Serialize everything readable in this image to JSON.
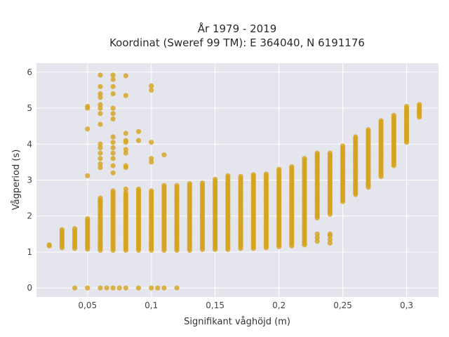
{
  "chart_data": {
    "type": "scatter",
    "title_line1": "År 1979 - 2019",
    "title_line2": "Koordinat (Sweref 99 TM): E 364040, N 6191176",
    "xlabel": "Signifikant våghöjd (m)",
    "ylabel": "Vågperiod (s)",
    "xlim": [
      0.01,
      0.325
    ],
    "ylim": [
      -0.25,
      6.25
    ],
    "xticks": [
      0.05,
      0.1,
      0.15,
      0.2,
      0.25,
      0.3
    ],
    "xtick_labels": [
      "0,05",
      "0,1",
      "0,15",
      "0,2",
      "0,25",
      "0,3"
    ],
    "yticks": [
      0,
      1,
      2,
      3,
      4,
      5,
      6
    ],
    "ytick_labels": [
      "0",
      "1",
      "2",
      "3",
      "4",
      "5",
      "6"
    ],
    "grid": true,
    "marker_color": "#d4a21a",
    "background_color": "#e5e5ee",
    "columns": [
      {
        "x": 0.02,
        "ymin": 1.17,
        "ymax": 1.2,
        "step": 0.03
      },
      {
        "x": 0.03,
        "ymin": 1.12,
        "ymax": 1.65,
        "step": 0.05
      },
      {
        "x": 0.04,
        "ymin": 1.1,
        "ymax": 1.65,
        "step": 0.05
      },
      {
        "x": 0.05,
        "ymin": 1.08,
        "ymax": 1.95,
        "step": 0.05
      },
      {
        "x": 0.06,
        "ymin": 1.05,
        "ymax": 2.5,
        "step": 0.05
      },
      {
        "x": 0.07,
        "ymin": 1.05,
        "ymax": 2.7,
        "step": 0.05
      },
      {
        "x": 0.08,
        "ymin": 1.05,
        "ymax": 2.65,
        "step": 0.05
      },
      {
        "x": 0.09,
        "ymin": 1.05,
        "ymax": 2.75,
        "step": 0.05
      },
      {
        "x": 0.1,
        "ymin": 1.05,
        "ymax": 2.7,
        "step": 0.05
      },
      {
        "x": 0.11,
        "ymin": 1.05,
        "ymax": 2.85,
        "step": 0.05
      },
      {
        "x": 0.12,
        "ymin": 1.05,
        "ymax": 2.85,
        "step": 0.05
      },
      {
        "x": 0.13,
        "ymin": 1.05,
        "ymax": 2.9,
        "step": 0.05
      },
      {
        "x": 0.14,
        "ymin": 1.07,
        "ymax": 2.95,
        "step": 0.05
      },
      {
        "x": 0.15,
        "ymin": 1.07,
        "ymax": 3.05,
        "step": 0.05
      },
      {
        "x": 0.16,
        "ymin": 1.07,
        "ymax": 3.15,
        "step": 0.05
      },
      {
        "x": 0.17,
        "ymin": 1.1,
        "ymax": 3.1,
        "step": 0.05
      },
      {
        "x": 0.18,
        "ymin": 1.1,
        "ymax": 3.15,
        "step": 0.05
      },
      {
        "x": 0.19,
        "ymin": 1.12,
        "ymax": 3.2,
        "step": 0.05
      },
      {
        "x": 0.2,
        "ymin": 1.15,
        "ymax": 3.3,
        "step": 0.05
      },
      {
        "x": 0.21,
        "ymin": 1.17,
        "ymax": 3.4,
        "step": 0.05
      },
      {
        "x": 0.22,
        "ymin": 1.2,
        "ymax": 3.6,
        "step": 0.05
      },
      {
        "x": 0.23,
        "ymin": 1.95,
        "ymax": 3.75,
        "step": 0.05
      },
      {
        "x": 0.24,
        "ymin": 2.05,
        "ymax": 3.75,
        "step": 0.05
      },
      {
        "x": 0.25,
        "ymin": 2.4,
        "ymax": 3.95,
        "step": 0.05
      },
      {
        "x": 0.26,
        "ymin": 2.6,
        "ymax": 4.2,
        "step": 0.05
      },
      {
        "x": 0.27,
        "ymin": 2.8,
        "ymax": 4.4,
        "step": 0.05
      },
      {
        "x": 0.28,
        "ymin": 3.1,
        "ymax": 4.65,
        "step": 0.05
      },
      {
        "x": 0.29,
        "ymin": 3.4,
        "ymax": 4.8,
        "step": 0.05
      },
      {
        "x": 0.3,
        "ymin": 4.05,
        "ymax": 5.05,
        "step": 0.05
      },
      {
        "x": 0.31,
        "ymin": 4.75,
        "ymax": 5.1,
        "step": 0.05
      }
    ],
    "scattered_points": [
      {
        "x": 0.04,
        "y": 0
      },
      {
        "x": 0.05,
        "y": 0
      },
      {
        "x": 0.06,
        "y": 0
      },
      {
        "x": 0.065,
        "y": 0
      },
      {
        "x": 0.07,
        "y": 0
      },
      {
        "x": 0.075,
        "y": 0
      },
      {
        "x": 0.08,
        "y": 0
      },
      {
        "x": 0.09,
        "y": 0
      },
      {
        "x": 0.1,
        "y": 0
      },
      {
        "x": 0.105,
        "y": 0
      },
      {
        "x": 0.11,
        "y": 0
      },
      {
        "x": 0.12,
        "y": 0
      },
      {
        "x": 0.05,
        "y": 3.12
      },
      {
        "x": 0.05,
        "y": 4.42
      },
      {
        "x": 0.05,
        "y": 5.0
      },
      {
        "x": 0.05,
        "y": 5.05
      },
      {
        "x": 0.06,
        "y": 3.35
      },
      {
        "x": 0.06,
        "y": 3.45
      },
      {
        "x": 0.06,
        "y": 3.6
      },
      {
        "x": 0.06,
        "y": 3.75
      },
      {
        "x": 0.06,
        "y": 3.9
      },
      {
        "x": 0.06,
        "y": 4.0
      },
      {
        "x": 0.06,
        "y": 4.55
      },
      {
        "x": 0.06,
        "y": 4.85
      },
      {
        "x": 0.06,
        "y": 5.0
      },
      {
        "x": 0.06,
        "y": 5.1
      },
      {
        "x": 0.06,
        "y": 5.3
      },
      {
        "x": 0.06,
        "y": 5.4
      },
      {
        "x": 0.06,
        "y": 5.6
      },
      {
        "x": 0.06,
        "y": 5.92
      },
      {
        "x": 0.06,
        "y": 2.25
      },
      {
        "x": 0.06,
        "y": 2.4
      },
      {
        "x": 0.07,
        "y": 3.2
      },
      {
        "x": 0.07,
        "y": 3.4
      },
      {
        "x": 0.07,
        "y": 3.6
      },
      {
        "x": 0.07,
        "y": 3.75
      },
      {
        "x": 0.07,
        "y": 3.9
      },
      {
        "x": 0.07,
        "y": 4.05
      },
      {
        "x": 0.07,
        "y": 4.2
      },
      {
        "x": 0.07,
        "y": 4.7
      },
      {
        "x": 0.07,
        "y": 4.85
      },
      {
        "x": 0.07,
        "y": 5.0
      },
      {
        "x": 0.07,
        "y": 5.4
      },
      {
        "x": 0.07,
        "y": 5.6
      },
      {
        "x": 0.07,
        "y": 5.8
      },
      {
        "x": 0.07,
        "y": 5.92
      },
      {
        "x": 0.08,
        "y": 2.75
      },
      {
        "x": 0.08,
        "y": 3.35
      },
      {
        "x": 0.08,
        "y": 3.4
      },
      {
        "x": 0.08,
        "y": 3.75
      },
      {
        "x": 0.08,
        "y": 3.85
      },
      {
        "x": 0.08,
        "y": 4.05
      },
      {
        "x": 0.08,
        "y": 4.1
      },
      {
        "x": 0.08,
        "y": 4.3
      },
      {
        "x": 0.08,
        "y": 5.35
      },
      {
        "x": 0.08,
        "y": 5.9
      },
      {
        "x": 0.09,
        "y": 4.1
      },
      {
        "x": 0.09,
        "y": 4.35
      },
      {
        "x": 0.1,
        "y": 3.5
      },
      {
        "x": 0.1,
        "y": 3.6
      },
      {
        "x": 0.1,
        "y": 4.05
      },
      {
        "x": 0.1,
        "y": 5.5
      },
      {
        "x": 0.1,
        "y": 5.62
      },
      {
        "x": 0.11,
        "y": 3.7
      },
      {
        "x": 0.23,
        "y": 1.3
      },
      {
        "x": 0.23,
        "y": 1.4
      },
      {
        "x": 0.23,
        "y": 1.5
      },
      {
        "x": 0.24,
        "y": 1.25
      },
      {
        "x": 0.24,
        "y": 1.35
      },
      {
        "x": 0.24,
        "y": 1.45
      },
      {
        "x": 0.24,
        "y": 1.5
      }
    ]
  }
}
